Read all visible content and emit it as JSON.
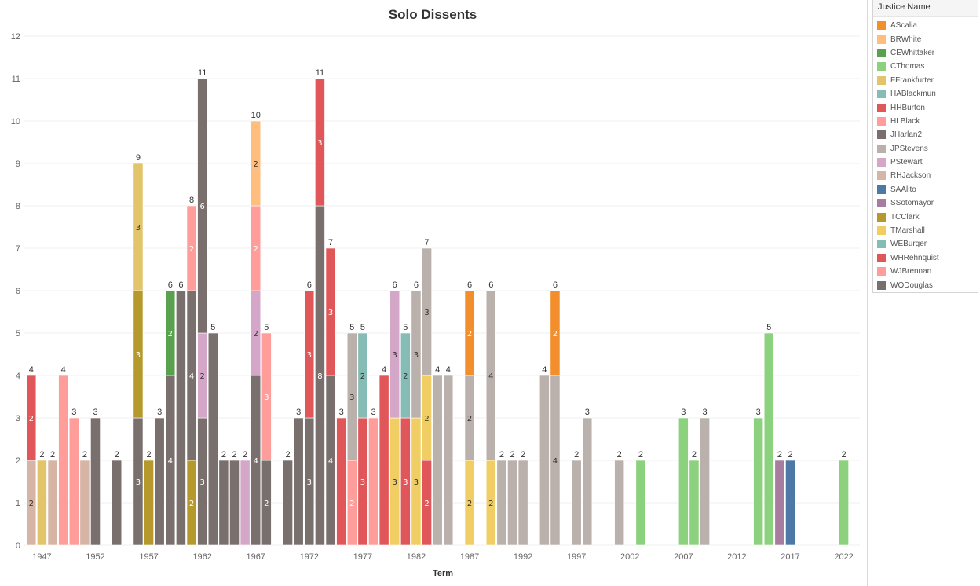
{
  "chart_data": {
    "type": "bar",
    "stacked": true,
    "title": "Solo Dissents",
    "xlabel": "Term",
    "ylabel": "",
    "ylim": [
      0,
      12
    ],
    "y_ticks": [
      0,
      1,
      2,
      3,
      4,
      5,
      6,
      7,
      8,
      9,
      10,
      11,
      12
    ],
    "x_range": [
      1946,
      2023
    ],
    "x_ticks": [
      1947,
      1952,
      1957,
      1962,
      1967,
      1972,
      1977,
      1982,
      1987,
      1992,
      1997,
      2002,
      2007,
      2012,
      2017,
      2022
    ],
    "legend_title": "Justice Name",
    "legend_position": "right",
    "justices": [
      {
        "name": "AScalia",
        "color": "#f28e2b"
      },
      {
        "name": "BRWhite",
        "color": "#ffbe7d"
      },
      {
        "name": "CEWhittaker",
        "color": "#59a14f"
      },
      {
        "name": "CThomas",
        "color": "#8cd17d"
      },
      {
        "name": "FFrankfurter",
        "color": "#e2c46a"
      },
      {
        "name": "HABlackmun",
        "color": "#86bcb6"
      },
      {
        "name": "HHBurton",
        "color": "#e15759"
      },
      {
        "name": "HLBlack",
        "color": "#ff9d9a"
      },
      {
        "name": "JHarlan2",
        "color": "#79706e"
      },
      {
        "name": "JPStevens",
        "color": "#bab0ac"
      },
      {
        "name": "PStewart",
        "color": "#d4a6c8"
      },
      {
        "name": "RHJackson",
        "color": "#d7b5a6"
      },
      {
        "name": "SAAlito",
        "color": "#4e79a7"
      },
      {
        "name": "SSotomayor",
        "color": "#a87c9f"
      },
      {
        "name": "TCClark",
        "color": "#b6992d"
      },
      {
        "name": "TMarshall",
        "color": "#f1ce63"
      },
      {
        "name": "WEBurger",
        "color": "#86bcb6"
      },
      {
        "name": "WHRehnquist",
        "color": "#e15759"
      },
      {
        "name": "WJBrennan",
        "color": "#ff9d9a"
      },
      {
        "name": "WODouglas",
        "color": "#79706e"
      }
    ],
    "bars": [
      {
        "term": 1946,
        "total": 4,
        "segments": [
          {
            "justice": "RHJackson",
            "value": 2,
            "label": "2"
          },
          {
            "justice": "HHBurton",
            "value": 2,
            "label": "2"
          }
        ]
      },
      {
        "term": 1947,
        "total": 2,
        "segments": [
          {
            "justice": "FFrankfurter",
            "value": 2,
            "label": ""
          }
        ]
      },
      {
        "term": 1948,
        "total": 2,
        "segments": [
          {
            "justice": "RHJackson",
            "value": 2,
            "label": ""
          }
        ]
      },
      {
        "term": 1949,
        "total": 4,
        "segments": [
          {
            "justice": "HLBlack",
            "value": 4,
            "label": ""
          }
        ]
      },
      {
        "term": 1950,
        "total": 3,
        "segments": [
          {
            "justice": "HLBlack",
            "value": 3,
            "label": ""
          }
        ]
      },
      {
        "term": 1951,
        "total": 2,
        "segments": [
          {
            "justice": "RHJackson",
            "value": 2,
            "label": ""
          }
        ]
      },
      {
        "term": 1952,
        "total": 3,
        "segments": [
          {
            "justice": "WODouglas",
            "value": 3,
            "label": ""
          }
        ]
      },
      {
        "term": 1954,
        "total": 2,
        "segments": [
          {
            "justice": "WODouglas",
            "value": 2,
            "label": ""
          }
        ]
      },
      {
        "term": 1956,
        "total": 9,
        "segments": [
          {
            "justice": "WODouglas",
            "value": 3,
            "label": "3"
          },
          {
            "justice": "TCClark",
            "value": 3,
            "label": "3"
          },
          {
            "justice": "FFrankfurter",
            "value": 3,
            "label": "3"
          }
        ]
      },
      {
        "term": 1957,
        "total": 2,
        "segments": [
          {
            "justice": "TCClark",
            "value": 2,
            "label": ""
          }
        ]
      },
      {
        "term": 1958,
        "total": 3,
        "segments": [
          {
            "justice": "WODouglas",
            "value": 3,
            "label": ""
          }
        ]
      },
      {
        "term": 1959,
        "total": 6,
        "segments": [
          {
            "justice": "WODouglas",
            "value": 4,
            "label": "4"
          },
          {
            "justice": "CEWhittaker",
            "value": 2,
            "label": "2"
          }
        ]
      },
      {
        "term": 1960,
        "total": 6,
        "segments": [
          {
            "justice": "WODouglas",
            "value": 6,
            "label": ""
          }
        ]
      },
      {
        "term": 1961,
        "total": 8,
        "segments": [
          {
            "justice": "TCClark",
            "value": 2,
            "label": "2"
          },
          {
            "justice": "WODouglas",
            "value": 4,
            "label": "4"
          },
          {
            "justice": "HLBlack",
            "value": 2,
            "label": "2"
          }
        ]
      },
      {
        "term": 1962,
        "total": 11,
        "segments": [
          {
            "justice": "WODouglas",
            "value": 3,
            "label": "3"
          },
          {
            "justice": "PStewart",
            "value": 2,
            "label": "2"
          },
          {
            "justice": "WODouglas",
            "value": 6,
            "label": "6"
          }
        ]
      },
      {
        "term": 1963,
        "total": 5,
        "segments": [
          {
            "justice": "WODouglas",
            "value": 5,
            "label": ""
          }
        ]
      },
      {
        "term": 1964,
        "total": 2,
        "segments": [
          {
            "justice": "WODouglas",
            "value": 2,
            "label": ""
          }
        ]
      },
      {
        "term": 1965,
        "total": 2,
        "segments": [
          {
            "justice": "WODouglas",
            "value": 2,
            "label": ""
          }
        ]
      },
      {
        "term": 1966,
        "total": 2,
        "segments": [
          {
            "justice": "PStewart",
            "value": 2,
            "label": ""
          }
        ]
      },
      {
        "term": 1967,
        "total": 10,
        "segments": [
          {
            "justice": "WODouglas",
            "value": 4,
            "label": "4"
          },
          {
            "justice": "PStewart",
            "value": 2,
            "label": "2"
          },
          {
            "justice": "HLBlack",
            "value": 2,
            "label": "2"
          },
          {
            "justice": "BRWhite",
            "value": 2,
            "label": "2"
          }
        ]
      },
      {
        "term": 1968,
        "total": 5,
        "segments": [
          {
            "justice": "WODouglas",
            "value": 2,
            "label": "2"
          },
          {
            "justice": "HLBlack",
            "value": 3,
            "label": "3"
          }
        ]
      },
      {
        "term": 1970,
        "total": 2,
        "segments": [
          {
            "justice": "WODouglas",
            "value": 2,
            "label": ""
          }
        ]
      },
      {
        "term": 1971,
        "total": 3,
        "segments": [
          {
            "justice": "WODouglas",
            "value": 3,
            "label": ""
          }
        ]
      },
      {
        "term": 1972,
        "total": 6,
        "segments": [
          {
            "justice": "WODouglas",
            "value": 3,
            "label": "3"
          },
          {
            "justice": "WHRehnquist",
            "value": 3,
            "label": "3"
          }
        ]
      },
      {
        "term": 1973,
        "total": 11,
        "segments": [
          {
            "justice": "WODouglas",
            "value": 8,
            "label": "8"
          },
          {
            "justice": "WHRehnquist",
            "value": 3,
            "label": "3"
          }
        ]
      },
      {
        "term": 1974,
        "total": 7,
        "segments": [
          {
            "justice": "WODouglas",
            "value": 4,
            "label": "4"
          },
          {
            "justice": "WHRehnquist",
            "value": 3,
            "label": "3"
          }
        ]
      },
      {
        "term": 1975,
        "total": 3,
        "segments": [
          {
            "justice": "WHRehnquist",
            "value": 3,
            "label": ""
          }
        ]
      },
      {
        "term": 1976,
        "total": 5,
        "segments": [
          {
            "justice": "WJBrennan",
            "value": 2,
            "label": "2"
          },
          {
            "justice": "JPStevens",
            "value": 3,
            "label": "3"
          }
        ]
      },
      {
        "term": 1977,
        "total": 5,
        "segments": [
          {
            "justice": "WHRehnquist",
            "value": 3,
            "label": "3"
          },
          {
            "justice": "WEBurger",
            "value": 2,
            "label": "2"
          }
        ]
      },
      {
        "term": 1978,
        "total": 3,
        "segments": [
          {
            "justice": "WJBrennan",
            "value": 3,
            "label": ""
          }
        ]
      },
      {
        "term": 1979,
        "total": 4,
        "segments": [
          {
            "justice": "WHRehnquist",
            "value": 4,
            "label": ""
          }
        ]
      },
      {
        "term": 1980,
        "total": 6,
        "segments": [
          {
            "justice": "TMarshall",
            "value": 3,
            "label": "3"
          },
          {
            "justice": "PStewart",
            "value": 3,
            "label": "3"
          }
        ]
      },
      {
        "term": 1981,
        "total": 5,
        "segments": [
          {
            "justice": "WHRehnquist",
            "value": 3,
            "label": "3"
          },
          {
            "justice": "HABlackmun",
            "value": 2,
            "label": "2"
          }
        ]
      },
      {
        "term": 1982,
        "total": 6,
        "segments": [
          {
            "justice": "TMarshall",
            "value": 3,
            "label": "3"
          },
          {
            "justice": "JPStevens",
            "value": 3,
            "label": "3"
          }
        ]
      },
      {
        "term": 1983,
        "total": 7,
        "segments": [
          {
            "justice": "WHRehnquist",
            "value": 2,
            "label": "2"
          },
          {
            "justice": "TMarshall",
            "value": 2,
            "label": "2"
          },
          {
            "justice": "JPStevens",
            "value": 3,
            "label": "3"
          }
        ]
      },
      {
        "term": 1984,
        "total": 4,
        "segments": [
          {
            "justice": "JPStevens",
            "value": 4,
            "label": ""
          }
        ]
      },
      {
        "term": 1985,
        "total": 4,
        "segments": [
          {
            "justice": "JPStevens",
            "value": 4,
            "label": ""
          }
        ]
      },
      {
        "term": 1987,
        "total": 6,
        "segments": [
          {
            "justice": "TMarshall",
            "value": 2,
            "label": "2"
          },
          {
            "justice": "JPStevens",
            "value": 2,
            "label": "2"
          },
          {
            "justice": "AScalia",
            "value": 2,
            "label": "2"
          }
        ]
      },
      {
        "term": 1989,
        "total": 6,
        "segments": [
          {
            "justice": "TMarshall",
            "value": 2,
            "label": "2"
          },
          {
            "justice": "JPStevens",
            "value": 4,
            "label": "4"
          }
        ]
      },
      {
        "term": 1990,
        "total": 2,
        "segments": [
          {
            "justice": "JPStevens",
            "value": 2,
            "label": ""
          }
        ]
      },
      {
        "term": 1991,
        "total": 2,
        "segments": [
          {
            "justice": "JPStevens",
            "value": 2,
            "label": ""
          }
        ]
      },
      {
        "term": 1992,
        "total": 2,
        "segments": [
          {
            "justice": "JPStevens",
            "value": 2,
            "label": ""
          }
        ]
      },
      {
        "term": 1994,
        "total": 4,
        "segments": [
          {
            "justice": "JPStevens",
            "value": 4,
            "label": ""
          }
        ]
      },
      {
        "term": 1995,
        "total": 6,
        "segments": [
          {
            "justice": "JPStevens",
            "value": 4,
            "label": "4"
          },
          {
            "justice": "AScalia",
            "value": 2,
            "label": "2"
          }
        ]
      },
      {
        "term": 1997,
        "total": 2,
        "segments": [
          {
            "justice": "JPStevens",
            "value": 2,
            "label": ""
          }
        ]
      },
      {
        "term": 1998,
        "total": 3,
        "segments": [
          {
            "justice": "JPStevens",
            "value": 3,
            "label": ""
          }
        ]
      },
      {
        "term": 2001,
        "total": 2,
        "segments": [
          {
            "justice": "JPStevens",
            "value": 2,
            "label": ""
          }
        ]
      },
      {
        "term": 2003,
        "total": 2,
        "segments": [
          {
            "justice": "CThomas",
            "value": 2,
            "label": ""
          }
        ]
      },
      {
        "term": 2007,
        "total": 3,
        "segments": [
          {
            "justice": "CThomas",
            "value": 3,
            "label": ""
          }
        ]
      },
      {
        "term": 2008,
        "total": 2,
        "segments": [
          {
            "justice": "CThomas",
            "value": 2,
            "label": ""
          }
        ]
      },
      {
        "term": 2009,
        "total": 3,
        "segments": [
          {
            "justice": "JPStevens",
            "value": 3,
            "label": ""
          }
        ]
      },
      {
        "term": 2014,
        "total": 3,
        "segments": [
          {
            "justice": "CThomas",
            "value": 3,
            "label": ""
          }
        ]
      },
      {
        "term": 2015,
        "total": 5,
        "segments": [
          {
            "justice": "CThomas",
            "value": 5,
            "label": ""
          }
        ]
      },
      {
        "term": 2016,
        "total": 2,
        "segments": [
          {
            "justice": "SSotomayor",
            "value": 2,
            "label": ""
          }
        ]
      },
      {
        "term": 2017,
        "total": 2,
        "segments": [
          {
            "justice": "SAAlito",
            "value": 2,
            "label": ""
          }
        ]
      },
      {
        "term": 2022,
        "total": 2,
        "segments": [
          {
            "justice": "CThomas",
            "value": 2,
            "label": ""
          }
        ]
      }
    ]
  }
}
